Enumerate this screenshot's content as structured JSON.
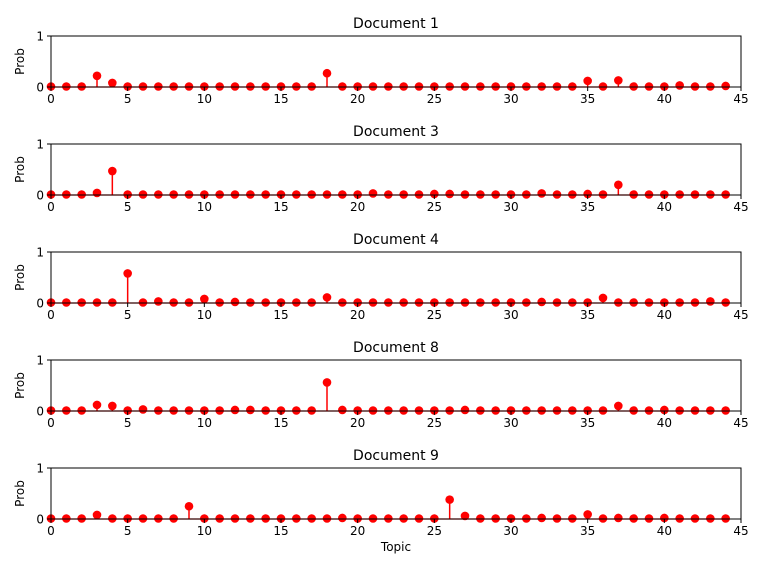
{
  "chart_data": [
    {
      "type": "stem",
      "title": "Document 1",
      "ylabel": "Prob",
      "xlabel": "",
      "xlim": [
        0,
        45
      ],
      "ylim": [
        0,
        1
      ],
      "xticks": [
        0,
        5,
        10,
        15,
        20,
        25,
        30,
        35,
        40,
        45
      ],
      "yticks": [
        0,
        1
      ],
      "x": [
        0,
        1,
        2,
        3,
        4,
        5,
        6,
        7,
        8,
        9,
        10,
        11,
        12,
        13,
        14,
        15,
        16,
        17,
        18,
        19,
        20,
        21,
        22,
        23,
        24,
        25,
        26,
        27,
        28,
        29,
        30,
        31,
        32,
        33,
        34,
        35,
        36,
        37,
        38,
        39,
        40,
        41,
        42,
        43,
        44
      ],
      "values": [
        0.01,
        0.01,
        0.01,
        0.22,
        0.08,
        0.01,
        0.01,
        0.01,
        0.01,
        0.01,
        0.01,
        0.01,
        0.01,
        0.01,
        0.01,
        0.01,
        0.01,
        0.01,
        0.27,
        0.01,
        0.01,
        0.01,
        0.01,
        0.01,
        0.01,
        0.01,
        0.01,
        0.01,
        0.01,
        0.01,
        0.01,
        0.01,
        0.01,
        0.01,
        0.01,
        0.12,
        0.01,
        0.13,
        0.01,
        0.01,
        0.01,
        0.03,
        0.01,
        0.01,
        0.02
      ]
    },
    {
      "type": "stem",
      "title": "Document 3",
      "ylabel": "Prob",
      "xlabel": "",
      "xlim": [
        0,
        45
      ],
      "ylim": [
        0,
        1
      ],
      "xticks": [
        0,
        5,
        10,
        15,
        20,
        25,
        30,
        35,
        40,
        45
      ],
      "yticks": [
        0,
        1
      ],
      "x": [
        0,
        1,
        2,
        3,
        4,
        5,
        6,
        7,
        8,
        9,
        10,
        11,
        12,
        13,
        14,
        15,
        16,
        17,
        18,
        19,
        20,
        21,
        22,
        23,
        24,
        25,
        26,
        27,
        28,
        29,
        30,
        31,
        32,
        33,
        34,
        35,
        36,
        37,
        38,
        39,
        40,
        41,
        42,
        43,
        44
      ],
      "values": [
        0.01,
        0.01,
        0.01,
        0.04,
        0.47,
        0.01,
        0.01,
        0.01,
        0.01,
        0.01,
        0.01,
        0.01,
        0.01,
        0.01,
        0.01,
        0.01,
        0.01,
        0.01,
        0.01,
        0.01,
        0.01,
        0.03,
        0.01,
        0.01,
        0.01,
        0.02,
        0.02,
        0.01,
        0.01,
        0.01,
        0.01,
        0.01,
        0.03,
        0.01,
        0.01,
        0.02,
        0.01,
        0.2,
        0.01,
        0.01,
        0.01,
        0.01,
        0.01,
        0.01,
        0.01
      ]
    },
    {
      "type": "stem",
      "title": "Document 4",
      "ylabel": "Prob",
      "xlabel": "",
      "xlim": [
        0,
        45
      ],
      "ylim": [
        0,
        1
      ],
      "xticks": [
        0,
        5,
        10,
        15,
        20,
        25,
        30,
        35,
        40,
        45
      ],
      "yticks": [
        0,
        1
      ],
      "x": [
        0,
        1,
        2,
        3,
        4,
        5,
        6,
        7,
        8,
        9,
        10,
        11,
        12,
        13,
        14,
        15,
        16,
        17,
        18,
        19,
        20,
        21,
        22,
        23,
        24,
        25,
        26,
        27,
        28,
        29,
        30,
        31,
        32,
        33,
        34,
        35,
        36,
        37,
        38,
        39,
        40,
        41,
        42,
        43,
        44
      ],
      "values": [
        0.01,
        0.01,
        0.01,
        0.01,
        0.01,
        0.58,
        0.01,
        0.03,
        0.01,
        0.01,
        0.08,
        0.01,
        0.02,
        0.01,
        0.01,
        0.01,
        0.01,
        0.01,
        0.11,
        0.01,
        0.01,
        0.01,
        0.01,
        0.01,
        0.01,
        0.01,
        0.01,
        0.01,
        0.01,
        0.01,
        0.01,
        0.01,
        0.02,
        0.01,
        0.01,
        0.01,
        0.1,
        0.01,
        0.01,
        0.01,
        0.01,
        0.01,
        0.01,
        0.03,
        0.01
      ]
    },
    {
      "type": "stem",
      "title": "Document 8",
      "ylabel": "Prob",
      "xlabel": "",
      "xlim": [
        0,
        45
      ],
      "ylim": [
        0,
        1
      ],
      "xticks": [
        0,
        5,
        10,
        15,
        20,
        25,
        30,
        35,
        40,
        45
      ],
      "yticks": [
        0,
        1
      ],
      "x": [
        0,
        1,
        2,
        3,
        4,
        5,
        6,
        7,
        8,
        9,
        10,
        11,
        12,
        13,
        14,
        15,
        16,
        17,
        18,
        19,
        20,
        21,
        22,
        23,
        24,
        25,
        26,
        27,
        28,
        29,
        30,
        31,
        32,
        33,
        34,
        35,
        36,
        37,
        38,
        39,
        40,
        41,
        42,
        43,
        44
      ],
      "values": [
        0.01,
        0.01,
        0.01,
        0.12,
        0.1,
        0.01,
        0.03,
        0.01,
        0.01,
        0.01,
        0.01,
        0.01,
        0.02,
        0.02,
        0.01,
        0.01,
        0.01,
        0.01,
        0.56,
        0.02,
        0.01,
        0.01,
        0.01,
        0.01,
        0.01,
        0.01,
        0.01,
        0.02,
        0.01,
        0.01,
        0.01,
        0.01,
        0.01,
        0.01,
        0.01,
        0.01,
        0.01,
        0.1,
        0.01,
        0.01,
        0.02,
        0.01,
        0.01,
        0.01,
        0.01
      ]
    },
    {
      "type": "stem",
      "title": "Document 9",
      "ylabel": "Prob",
      "xlabel": "Topic",
      "xlim": [
        0,
        45
      ],
      "ylim": [
        0,
        1
      ],
      "xticks": [
        0,
        5,
        10,
        15,
        20,
        25,
        30,
        35,
        40,
        45
      ],
      "yticks": [
        0,
        1
      ],
      "x": [
        0,
        1,
        2,
        3,
        4,
        5,
        6,
        7,
        8,
        9,
        10,
        11,
        12,
        13,
        14,
        15,
        16,
        17,
        18,
        19,
        20,
        21,
        22,
        23,
        24,
        25,
        26,
        27,
        28,
        29,
        30,
        31,
        32,
        33,
        34,
        35,
        36,
        37,
        38,
        39,
        40,
        41,
        42,
        43,
        44
      ],
      "values": [
        0.01,
        0.01,
        0.01,
        0.08,
        0.01,
        0.01,
        0.01,
        0.01,
        0.01,
        0.25,
        0.01,
        0.01,
        0.01,
        0.01,
        0.01,
        0.01,
        0.01,
        0.01,
        0.01,
        0.02,
        0.01,
        0.01,
        0.01,
        0.01,
        0.01,
        0.01,
        0.38,
        0.06,
        0.01,
        0.01,
        0.01,
        0.01,
        0.02,
        0.01,
        0.01,
        0.09,
        0.01,
        0.02,
        0.01,
        0.01,
        0.02,
        0.01,
        0.01,
        0.01,
        0.01
      ]
    }
  ],
  "colors": {
    "stem": "#ff0000",
    "frame": "#000000"
  }
}
